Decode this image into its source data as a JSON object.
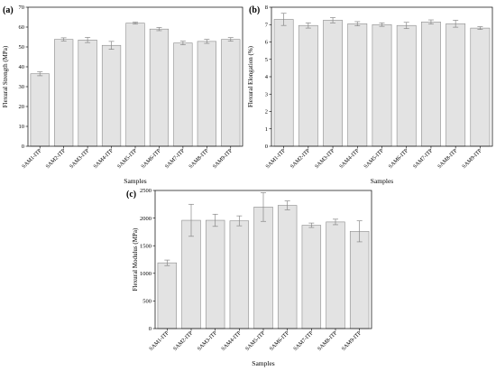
{
  "chart_data": [
    {
      "type": "bar",
      "panel_label": "(a)",
      "xlabel": "Samples",
      "ylabel": "Flexural Strength (MPa)",
      "ylim": [
        0,
        70
      ],
      "yticks": [
        0,
        10,
        20,
        30,
        40,
        50,
        60,
        70
      ],
      "categories": [
        "SAM1-ITP",
        "SAM2-ITP",
        "SAM3-ITP",
        "SAM4-ITP",
        "SAM5-ITP",
        "SAM6-ITP",
        "SAM7-ITP",
        "SAM8-ITP",
        "SAM9-ITP"
      ],
      "values": [
        36.5,
        53.8,
        53.5,
        50.8,
        62.0,
        59.0,
        52.0,
        52.8,
        53.8
      ],
      "errors": [
        1.0,
        0.8,
        1.3,
        2.0,
        0.5,
        0.8,
        0.9,
        1.0,
        0.9
      ],
      "bar_color": "#e3e3e3",
      "grid": false
    },
    {
      "type": "bar",
      "panel_label": "(b)",
      "xlabel": "Samples",
      "ylabel": "Flexural Elongation (%)",
      "ylim": [
        0,
        8
      ],
      "yticks": [
        0,
        1,
        2,
        3,
        4,
        5,
        6,
        7,
        8
      ],
      "categories": [
        "SAM1-ITP",
        "SAM2-ITP",
        "SAM3-ITP",
        "SAM4-ITP",
        "SAM5-ITP",
        "SAM6-ITP",
        "SAM7-ITP",
        "SAM8-ITP",
        "SAM9-ITP"
      ],
      "values": [
        7.3,
        6.95,
        7.25,
        7.05,
        7.0,
        6.95,
        7.15,
        7.05,
        6.8
      ],
      "errors": [
        0.35,
        0.15,
        0.15,
        0.12,
        0.1,
        0.18,
        0.12,
        0.2,
        0.08
      ],
      "bar_color": "#e3e3e3",
      "grid": false
    },
    {
      "type": "bar",
      "panel_label": "(c)",
      "xlabel": "Samples",
      "ylabel": "Flexural Modulus (MPa)",
      "ylim": [
        0,
        2500
      ],
      "yticks": [
        0,
        500,
        1000,
        1500,
        2000,
        2500
      ],
      "categories": [
        "SAM1-ITP",
        "SAM2-ITP",
        "SAM3-ITP",
        "SAM4-ITP",
        "SAM5-ITP",
        "SAM6-ITP",
        "SAM7-ITP",
        "SAM8-ITP",
        "SAM9-ITP"
      ],
      "values": [
        1190,
        1960,
        1960,
        1950,
        2200,
        2230,
        1870,
        1930,
        1760
      ],
      "errors": [
        50,
        290,
        110,
        90,
        260,
        80,
        40,
        50,
        190
      ],
      "bar_color": "#e3e3e3",
      "grid": false
    }
  ]
}
